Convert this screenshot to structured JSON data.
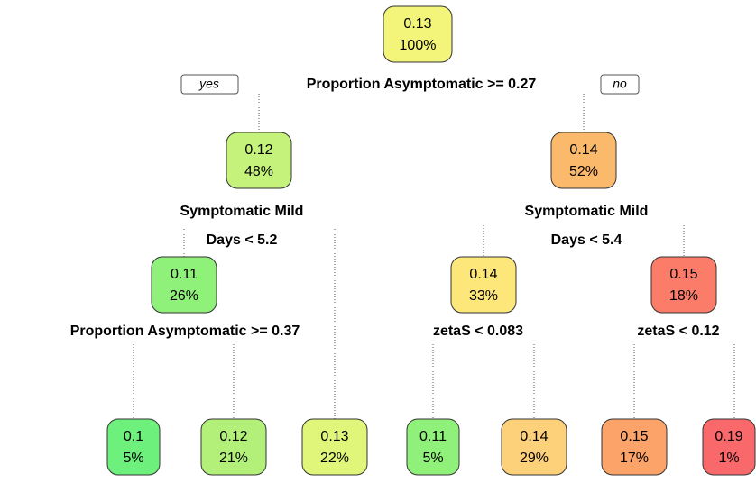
{
  "tree": {
    "nodes": [
      {
        "value": "0.13",
        "percent": "100%",
        "color": "#f2f57a"
      },
      {
        "value": "0.12",
        "percent": "48%",
        "color": "#c4f27a"
      },
      {
        "value": "0.14",
        "percent": "52%",
        "color": "#fbb96c"
      },
      {
        "value": "0.11",
        "percent": "26%",
        "color": "#8ff07a"
      },
      {
        "value": "0.14",
        "percent": "33%",
        "color": "#fde67a"
      },
      {
        "value": "0.15",
        "percent": "18%",
        "color": "#fb7c68"
      },
      {
        "value": "0.1",
        "percent": "5%",
        "color": "#6df07c"
      },
      {
        "value": "0.12",
        "percent": "21%",
        "color": "#b2f07a"
      },
      {
        "value": "0.13",
        "percent": "22%",
        "color": "#e0f67a"
      },
      {
        "value": "0.11",
        "percent": "5%",
        "color": "#8ff07a"
      },
      {
        "value": "0.14",
        "percent": "29%",
        "color": "#fdd07a"
      },
      {
        "value": "0.15",
        "percent": "17%",
        "color": "#fca36a"
      },
      {
        "value": "0.19",
        "percent": "1%",
        "color": "#f9686a"
      }
    ],
    "splits": [
      {
        "lines": [
          "Proportion Asymptomatic >= 0.27"
        ]
      },
      {
        "lines": [
          "Symptomatic Mild",
          "Days < 5.2"
        ]
      },
      {
        "lines": [
          "Symptomatic Mild",
          "Days < 5.4"
        ]
      },
      {
        "lines": [
          "Proportion Asymptomatic >= 0.37"
        ]
      },
      {
        "lines": [
          "zetaS < 0.083"
        ]
      },
      {
        "lines": [
          "zetaS < 0.12"
        ]
      }
    ],
    "yes_label": "yes",
    "no_label": "no"
  }
}
